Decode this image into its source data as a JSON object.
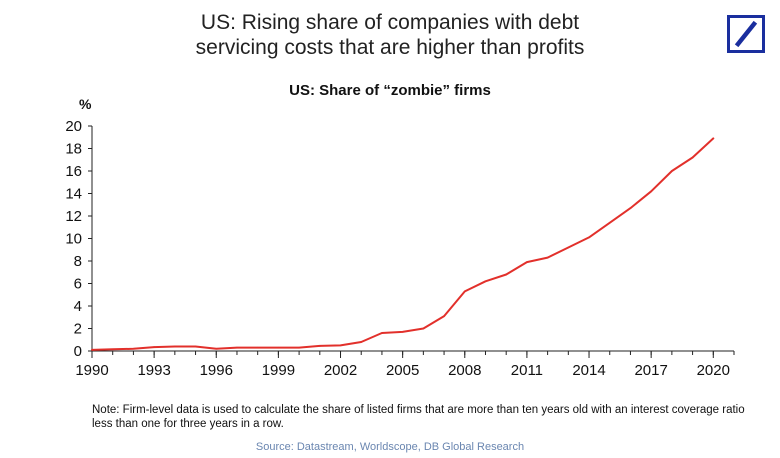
{
  "header": {
    "title_line1": "US: Rising share of companies with debt",
    "title_line2": "servicing costs that are higher than profits",
    "logo_icon": "deutsche-bank-slash-logo",
    "logo_color": "#1a2e9e"
  },
  "chart_data": {
    "type": "line",
    "title": "US: Share of “zombie” firms",
    "ylabel": "%",
    "xlabel": "",
    "ylim": [
      0,
      20
    ],
    "yticks": [
      0,
      2,
      4,
      6,
      8,
      10,
      12,
      14,
      16,
      18,
      20
    ],
    "xlim": [
      1990,
      2021
    ],
    "xticks": [
      1990,
      1993,
      1996,
      1999,
      2002,
      2005,
      2008,
      2011,
      2014,
      2017,
      2020
    ],
    "grid": false,
    "legend": "none",
    "line_color": "#e2302b",
    "series": [
      {
        "x": [
          1990,
          1991,
          1992,
          1993,
          1994,
          1995,
          1996,
          1997,
          1998,
          1999,
          2000,
          2001,
          2002,
          2003,
          2004,
          2005,
          2006,
          2007,
          2008,
          2009,
          2010,
          2011,
          2012,
          2013,
          2014,
          2015,
          2016,
          2017,
          2018,
          2019,
          2020
        ],
        "values": [
          0.1,
          0.15,
          0.2,
          0.35,
          0.4,
          0.4,
          0.2,
          0.3,
          0.3,
          0.3,
          0.3,
          0.45,
          0.5,
          0.8,
          1.6,
          1.7,
          2.0,
          3.1,
          5.3,
          6.2,
          6.8,
          7.9,
          8.3,
          9.2,
          10.1,
          11.4,
          12.7,
          14.2,
          16.0,
          17.2,
          18.9
        ]
      }
    ]
  },
  "footer": {
    "note": "Note: Firm-level data is used to calculate the share of listed firms that are more than ten years old with an interest coverage ratio less than one for three years in a row.",
    "source": "Source: Datastream, Worldscope, DB Global Research"
  }
}
